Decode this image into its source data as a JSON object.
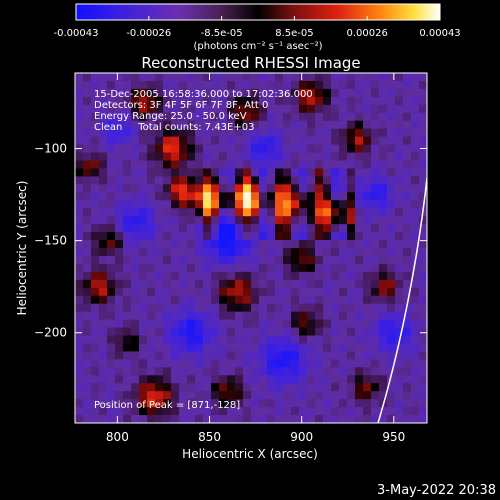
{
  "chart_data": {
    "type": "heatmap",
    "title": "Reconstructed RHESSI Image",
    "xlabel": "Heliocentric X (arcsec)",
    "ylabel": "Heliocentric Y (arcsec)",
    "xlim": [
      777,
      968
    ],
    "ylim": [
      -249,
      -59
    ],
    "x_ticks": [
      800,
      850,
      900,
      950
    ],
    "y_ticks": [
      -100,
      -150,
      -200
    ],
    "colorbar": {
      "ticks": [
        "-0.00043",
        "-0.00026",
        "-8.5e-05",
        "8.5e-05",
        "0.00026",
        "0.00043"
      ],
      "unit_label": "(photons cm⁻² s⁻¹ asec⁻²)",
      "range": [
        -0.00043,
        0.00043
      ]
    },
    "info_lines": [
      "15-Dec-2005 16:58:36.000 to 17:02:36.000",
      "Detectors: 3F 4F 5F 6F 7F 8F, Att 0",
      "Energy Range: 25.0 - 50.0 keV",
      "Clean     Total counts: 7.43E+03"
    ],
    "peak_label": "Position of Peak = [871,-128]",
    "peak_position": [
      871,
      -128
    ],
    "limb_color": "#ffffff"
  },
  "footer": {
    "date": "3-May-2022 20:38"
  },
  "colors": {
    "background": "#000000",
    "text": "#ffffff"
  }
}
